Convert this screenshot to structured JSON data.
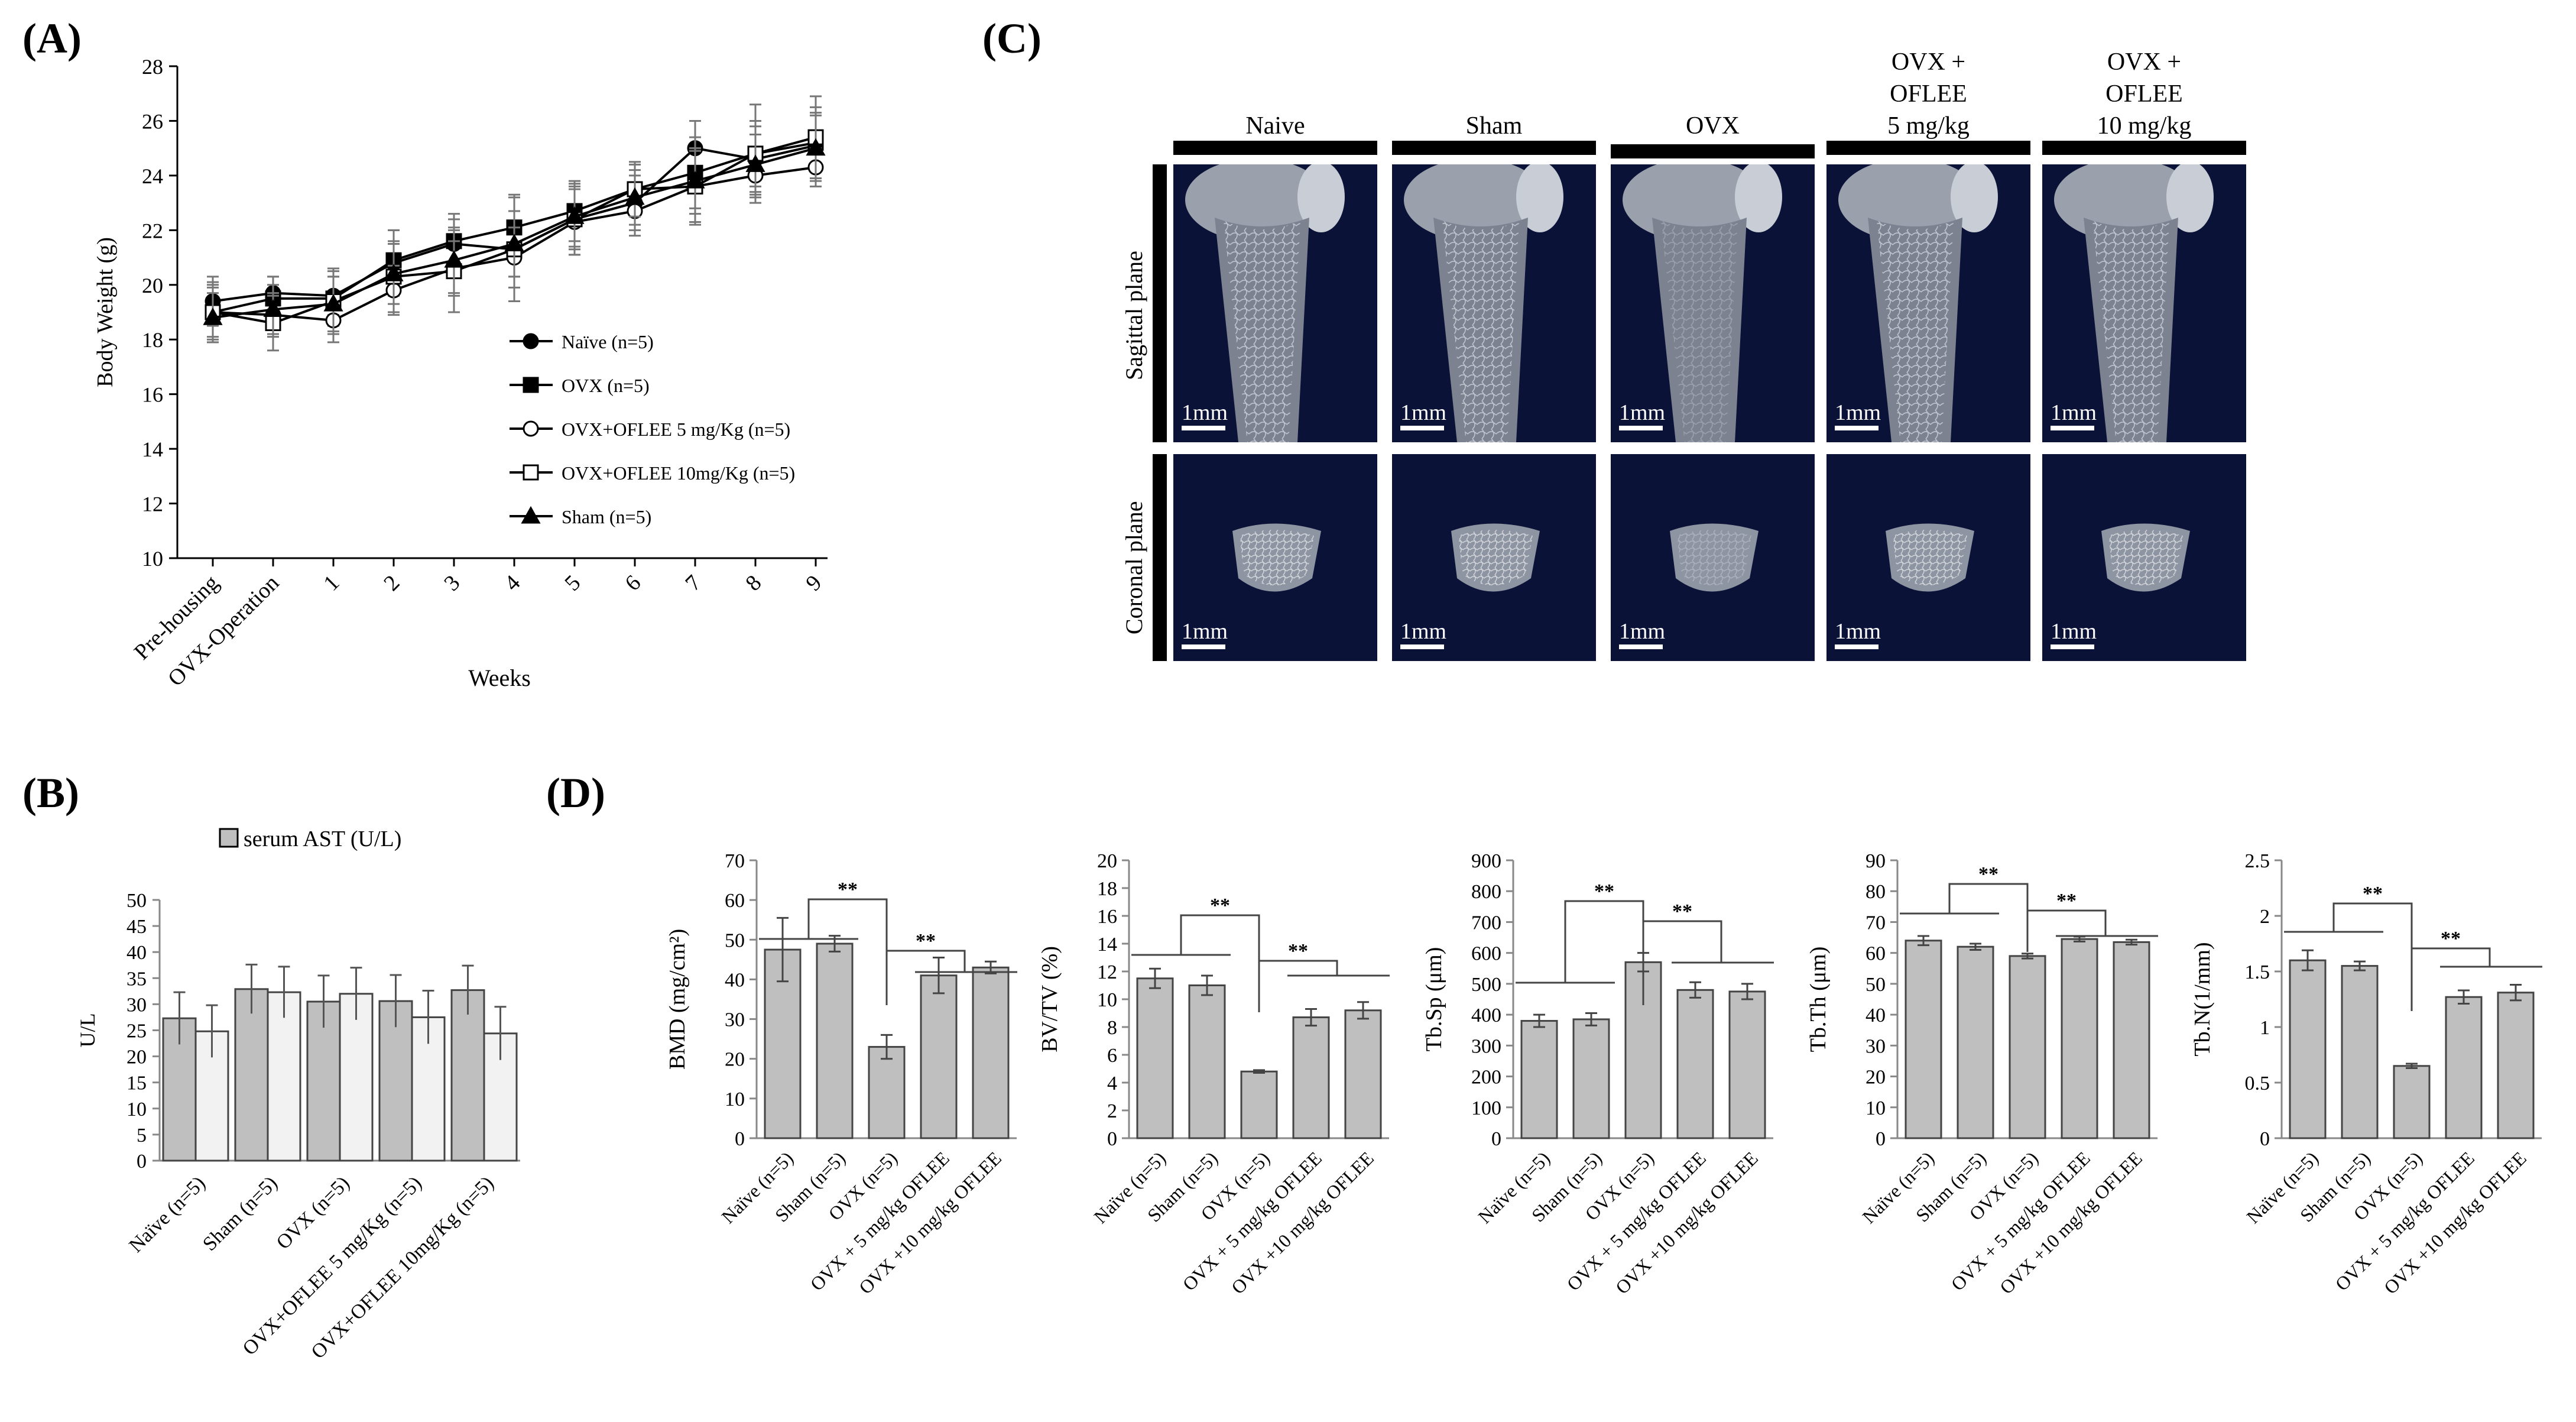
{
  "panels": {
    "a": "(A)",
    "b": "(B)",
    "c": "(C)",
    "d": "(D)"
  },
  "chart_data": [
    {
      "id": "A",
      "type": "line",
      "xlabel": "Weeks",
      "ylabel": "Body Weight (g)",
      "ylim": [
        10,
        28
      ],
      "yticks": [
        10,
        12,
        14,
        16,
        18,
        20,
        22,
        24,
        26,
        28
      ],
      "categories": [
        "Pre-housing",
        "OVX-Operation",
        "1",
        "2",
        "3",
        "4",
        "5",
        "6",
        "7",
        "8",
        "9"
      ],
      "legend_position": "bottom-right",
      "series": [
        {
          "name": "Naïve (n=5)",
          "marker": "filled-circle",
          "values": [
            19.4,
            19.7,
            19.6,
            20.8,
            21.5,
            21.3,
            22.4,
            23.0,
            25.0,
            24.6,
            25.1
          ],
          "errors": [
            0.9,
            0.6,
            0.7,
            1.2,
            0.9,
            1.0,
            1.1,
            1.0,
            1.0,
            1.2,
            1.2
          ]
        },
        {
          "name": "OVX (n=5)",
          "marker": "filled-square",
          "values": [
            19.0,
            19.5,
            19.5,
            20.9,
            21.6,
            22.1,
            22.7,
            23.5,
            24.1,
            24.8,
            25.2
          ],
          "errors": [
            1.1,
            0.8,
            1.0,
            1.1,
            1.0,
            1.2,
            1.1,
            0.9,
            1.3,
            1.2,
            1.3
          ]
        },
        {
          "name": "OVX+OFLEE 5 mg/Kg (n=5)",
          "marker": "open-circle",
          "values": [
            19.0,
            18.9,
            18.7,
            19.8,
            20.6,
            21.0,
            22.3,
            22.7,
            23.6,
            24.0,
            24.3
          ],
          "errors": [
            0.9,
            0.8,
            0.8,
            0.9,
            1.0,
            1.1,
            1.2,
            0.9,
            1.3,
            0.8,
            0.7
          ]
        },
        {
          "name": "OVX+OFLEE 10mg/Kg (n=5)",
          "marker": "open-square",
          "values": [
            19.0,
            18.6,
            19.4,
            20.3,
            20.5,
            21.3,
            22.4,
            23.5,
            23.6,
            24.8,
            25.4
          ],
          "errors": [
            1.0,
            1.0,
            1.2,
            1.3,
            1.5,
            1.9,
            1.3,
            1.0,
            1.4,
            1.8,
            1.5
          ]
        },
        {
          "name": "Sham (n=5)",
          "marker": "filled-triangle",
          "values": [
            18.8,
            19.1,
            19.3,
            20.4,
            20.9,
            21.5,
            22.5,
            23.2,
            23.8,
            24.4,
            25.0
          ],
          "errors": [
            0.9,
            0.9,
            1.0,
            1.1,
            1.2,
            1.2,
            1.1,
            1.0,
            1.2,
            1.1,
            1.2
          ]
        }
      ]
    },
    {
      "id": "B",
      "type": "bar",
      "ylabel": "U/L",
      "ylim": [
        0,
        50
      ],
      "yticks": [
        0,
        5,
        10,
        15,
        20,
        25,
        30,
        35,
        40,
        45,
        50
      ],
      "legend": "serum AST (U/L)",
      "categories": [
        "Naïve (n=5)",
        "Sham (n=5)",
        "OVX (n=5)",
        "OVX+OFLEE 5 mg/Kg (n=5)",
        "OVX+OFLEE 10mg/Kg (n=5)"
      ],
      "series": [
        {
          "color": "#bfbfbf",
          "values": [
            27.3,
            32.9,
            30.5,
            30.6,
            32.7
          ],
          "errors": [
            5.0,
            4.7,
            5.0,
            5.0,
            4.7
          ]
        },
        {
          "color": "#f2f2f2",
          "values": [
            24.8,
            32.3,
            32.0,
            27.5,
            24.4
          ],
          "errors": [
            5.0,
            4.9,
            5.0,
            5.1,
            5.1
          ]
        }
      ]
    },
    {
      "id": "D1",
      "type": "bar",
      "ylabel": "BMD (mg/cm²)",
      "ylim": [
        0,
        70
      ],
      "yticks": [
        0,
        10,
        20,
        30,
        40,
        50,
        60,
        70
      ],
      "categories": [
        "Naïve (n=5)",
        "Sham (n=5)",
        "OVX (n=5)",
        "OVX + 5 mg/kg OFLEE",
        "OVX +10 mg/kg OFLEE"
      ],
      "values": [
        47.5,
        49.0,
        23.0,
        41.0,
        43.0
      ],
      "errors": [
        8.0,
        2.0,
        3.0,
        4.5,
        1.5
      ],
      "significance": [
        "**",
        "**"
      ]
    },
    {
      "id": "D2",
      "type": "bar",
      "ylabel": "BV/TV (%)",
      "ylim": [
        0,
        20
      ],
      "yticks": [
        0,
        2,
        4,
        6,
        8,
        10,
        12,
        14,
        16,
        18,
        20
      ],
      "categories": [
        "Naïve (n=5)",
        "Sham (n=5)",
        "OVX (n=5)",
        "OVX + 5 mg/kg OFLEE",
        "OVX +10 mg/kg OFLEE"
      ],
      "values": [
        11.5,
        11.0,
        4.8,
        8.7,
        9.2
      ],
      "errors": [
        0.7,
        0.7,
        0.1,
        0.6,
        0.6
      ],
      "significance": [
        "**",
        "**"
      ]
    },
    {
      "id": "D3",
      "type": "bar",
      "ylabel": "Tb.Sp (μm)",
      "ylim": [
        0,
        900
      ],
      "yticks": [
        0,
        100,
        200,
        300,
        400,
        500,
        600,
        700,
        800,
        900
      ],
      "categories": [
        "Naïve (n=5)",
        "Sham (n=5)",
        "OVX (n=5)",
        "OVX + 5 mg/kg OFLEE",
        "OVX +10 mg/kg OFLEE"
      ],
      "values": [
        380,
        385,
        570,
        480,
        475
      ],
      "errors": [
        20,
        20,
        30,
        25,
        25
      ],
      "significance": [
        "**",
        "**"
      ]
    },
    {
      "id": "D4",
      "type": "bar",
      "ylabel": "Tb.Th (μm)",
      "ylim": [
        0,
        90
      ],
      "yticks": [
        0,
        10,
        20,
        30,
        40,
        50,
        60,
        70,
        80,
        90
      ],
      "categories": [
        "Naïve (n=5)",
        "Sham (n=5)",
        "OVX (n=5)",
        "OVX + 5 mg/kg OFLEE",
        "OVX +10 mg/kg OFLEE"
      ],
      "values": [
        64,
        62,
        59,
        64.5,
        63.5
      ],
      "errors": [
        1.5,
        1.0,
        0.8,
        0.8,
        0.8
      ],
      "significance": [
        "**",
        "**"
      ]
    },
    {
      "id": "D5",
      "type": "bar",
      "ylabel": "Tb.N(1/mm)",
      "ylim": [
        0,
        2.5
      ],
      "yticks": [
        0,
        0.5,
        1,
        1.5,
        2,
        2.5
      ],
      "categories": [
        "Naïve (n=5)",
        "Sham (n=5)",
        "OVX (n=5)",
        "OVX + 5 mg/kg OFLEE",
        "OVX +10 mg/kg OFLEE"
      ],
      "values": [
        1.6,
        1.55,
        0.65,
        1.27,
        1.31
      ],
      "errors": [
        0.09,
        0.04,
        0.02,
        0.06,
        0.07
      ],
      "significance": [
        "**",
        "**"
      ]
    }
  ],
  "micro_ct": {
    "columns": [
      "Naive",
      "Sham",
      "OVX",
      "OVX +\nOFLEE\n5 mg/kg",
      "OVX +\nOFLEE\n10 mg/kg"
    ],
    "rows": [
      "Sagittal plane",
      "Coronal plane"
    ],
    "scale_label": "1mm",
    "background_color": "#0b1238"
  }
}
